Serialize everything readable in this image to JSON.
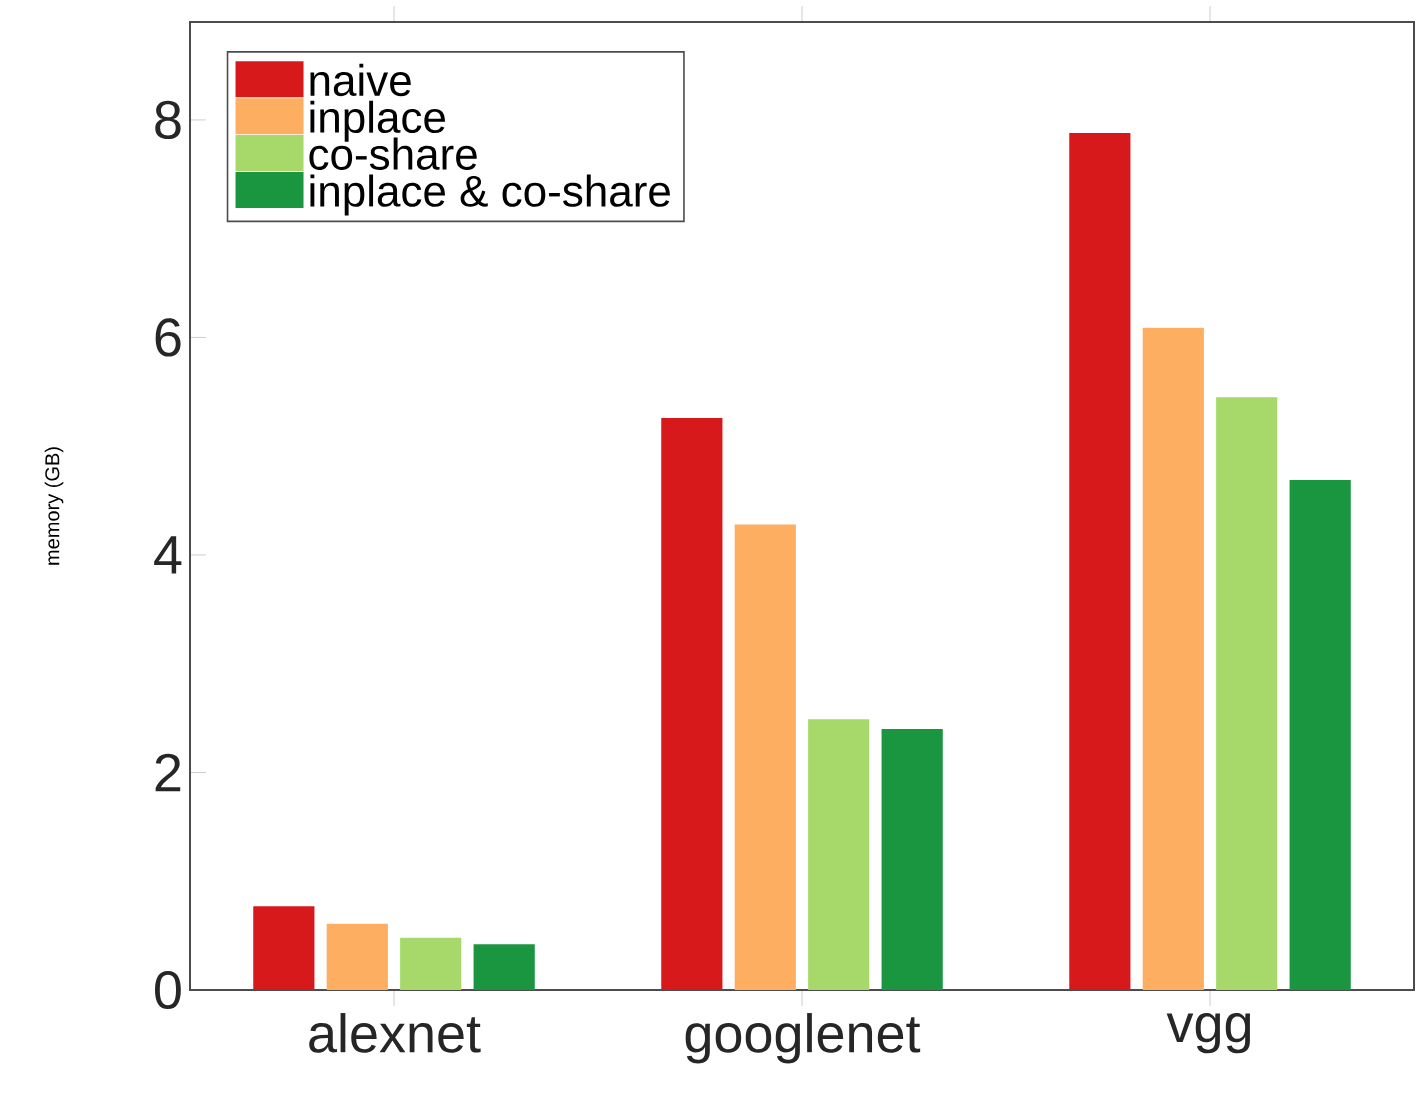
{
  "chart_data": {
    "type": "bar",
    "ylabel": "memory (GB)",
    "categories": [
      "alexnet",
      "googlenet",
      "vgg"
    ],
    "series": [
      {
        "name": "naive",
        "color": "#d7191c",
        "values": [
          0.77,
          5.26,
          7.88
        ]
      },
      {
        "name": "inplace",
        "color": "#fdae61",
        "values": [
          0.61,
          4.28,
          6.09
        ]
      },
      {
        "name": "co-share",
        "color": "#a6d96a",
        "values": [
          0.48,
          2.49,
          5.45
        ]
      },
      {
        "name": "inplace & co-share",
        "color": "#1a9641",
        "values": [
          0.42,
          2.4,
          4.69
        ]
      }
    ],
    "ylim": [
      0,
      8.9
    ],
    "yticks": [
      0,
      2,
      4,
      6,
      8
    ],
    "grid": false,
    "legend": "top left"
  }
}
